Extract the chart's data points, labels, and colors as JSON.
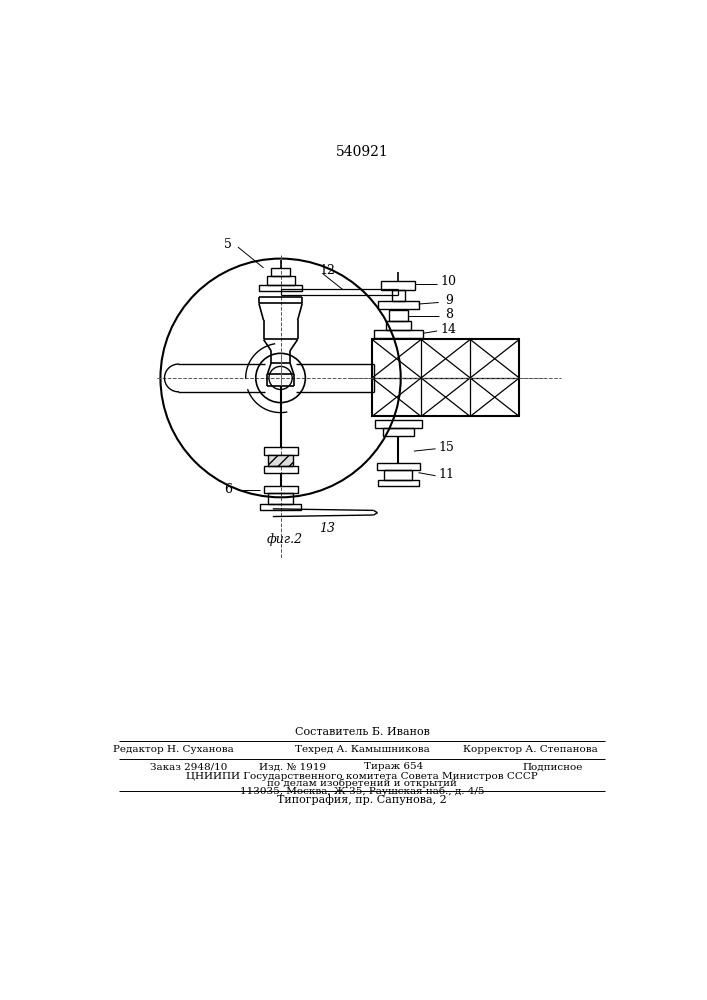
{
  "patent_number": "540921",
  "fig_label": "фиг.2",
  "composer": "Составитель Б. Иванов",
  "editor": "Редактор Н. Суханова",
  "techred": "Техред А. Камышникова",
  "corrector": "Корректор А. Степанова",
  "order": "Заказ 2948/10",
  "izdanie": "Изд. № 1919",
  "tirazh": "Тираж 654",
  "podpisnoe": "Подписное",
  "cniip1": "ЦНИИПИ Государственного комитета Совета Министров СССР",
  "cniip2": "по делам изобретений и открытий",
  "cniip3": "113035, Москва, Ж-35, Раушская наб., д. 4/5",
  "tipografia": "Типография, пр. Сапунова, 2",
  "bg_color": "#ffffff"
}
